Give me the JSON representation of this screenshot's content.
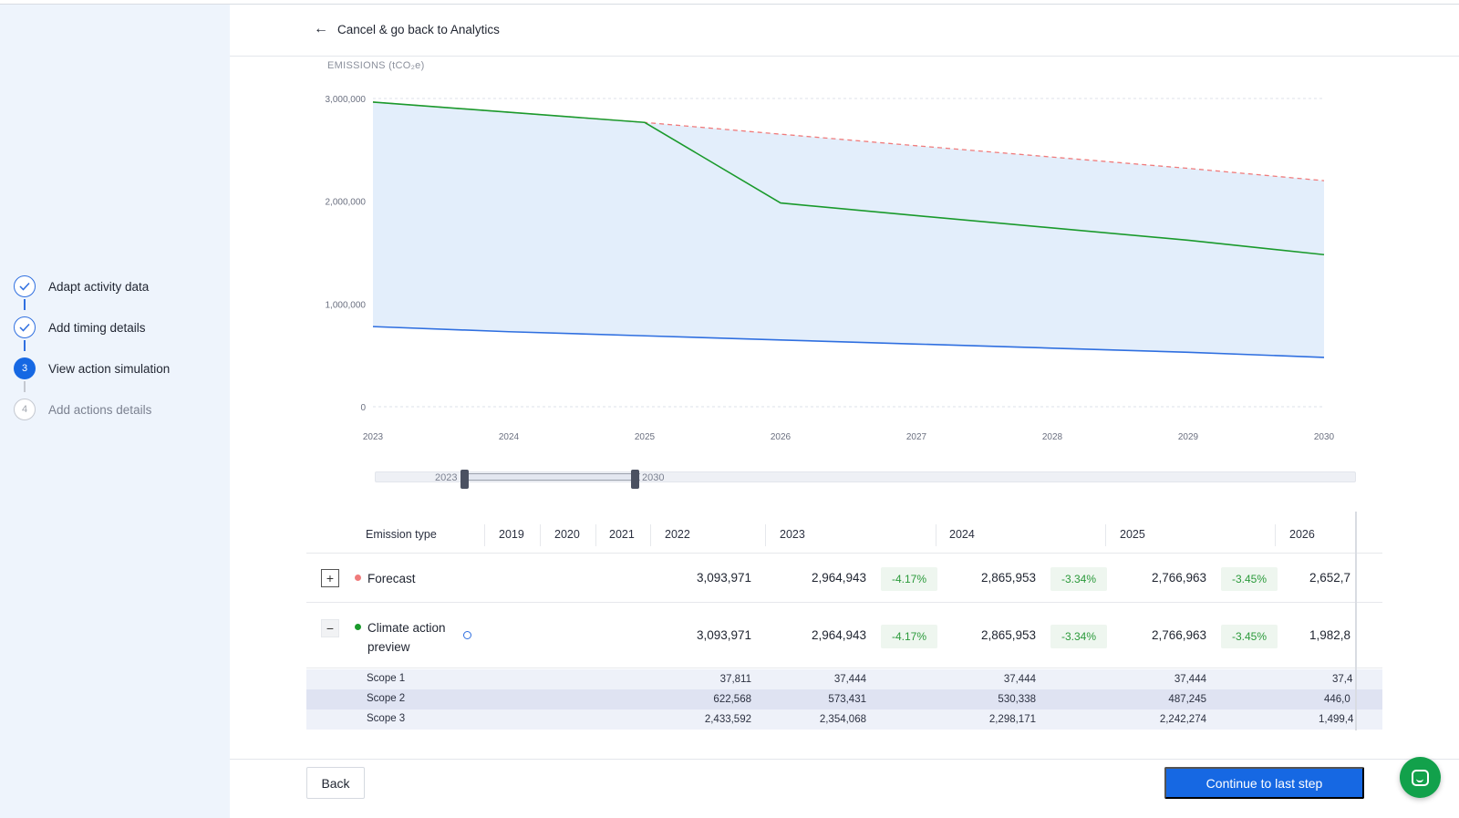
{
  "steps": [
    {
      "label": "Adapt activity data",
      "state": "done",
      "marker": ""
    },
    {
      "label": "Add timing details",
      "state": "done",
      "marker": ""
    },
    {
      "label": "View action simulation",
      "state": "active",
      "marker": "3"
    },
    {
      "label": "Add actions details",
      "state": "todo",
      "marker": "4"
    }
  ],
  "header": {
    "back_label": "Cancel & go back to Analytics"
  },
  "chart_data": {
    "type": "line",
    "ylabel": "EMISSIONS (tCO₂e)",
    "x": [
      2023,
      2024,
      2025,
      2026,
      2027,
      2028,
      2029,
      2030
    ],
    "ylim": [
      0,
      3000000
    ],
    "yticks": [
      "3,000,000",
      "2,000,000",
      "1,000,000",
      "0"
    ],
    "ytick_values": [
      3000000,
      2000000,
      1000000,
      0
    ],
    "grid": true,
    "series": [
      {
        "key": "forecast",
        "color": "#f07b7b",
        "style": "dashed",
        "values": [
          2964943,
          2865953,
          2766963,
          2652700,
          2540000,
          2430000,
          2320000,
          2200000
        ]
      },
      {
        "key": "climate_action",
        "color": "#1a9a2c",
        "style": "solid",
        "values": [
          2964943,
          2865953,
          2766963,
          1982800,
          1860000,
          1740000,
          1620000,
          1480000
        ]
      },
      {
        "key": "baseline",
        "color": "#2f6fe0",
        "style": "solid",
        "values": [
          780000,
          730000,
          690000,
          650000,
          610000,
          570000,
          530000,
          480000
        ]
      }
    ],
    "fill_color": "#e3eefb"
  },
  "range_slider": {
    "start": "2023",
    "end": "2030"
  },
  "table": {
    "headers": [
      "Emission type",
      "2019",
      "2020",
      "2021",
      "2022",
      "2023",
      "2024",
      "2025",
      "2026"
    ],
    "rows": [
      {
        "name": "Forecast",
        "toggle": "+",
        "dot_color": "#f07b7b",
        "v2022": "3,093,971",
        "v2023": "2,964,943",
        "p2023": "-4.17%",
        "v2024": "2,865,953",
        "p2024": "-3.34%",
        "v2025": "2,766,963",
        "p2025": "-3.45%",
        "v2026": "2,652,7"
      },
      {
        "name": "Climate action",
        "name2": "preview",
        "toggle": "−",
        "dot_color": "#1a9a2c",
        "v2022": "3,093,971",
        "v2023": "2,964,943",
        "p2023": "-4.17%",
        "v2024": "2,865,953",
        "p2024": "-3.34%",
        "v2025": "2,766,963",
        "p2025": "-3.45%",
        "v2026": "1,982,8"
      }
    ],
    "scopes": [
      {
        "name": "Scope 1",
        "v2022": "37,811",
        "v2023": "37,444",
        "v2024": "37,444",
        "v2025": "37,444",
        "v2026": "37,4"
      },
      {
        "name": "Scope 2",
        "v2022": "622,568",
        "v2023": "573,431",
        "v2024": "530,338",
        "v2025": "487,245",
        "v2026": "446,0"
      },
      {
        "name": "Scope 3",
        "v2022": "2,433,592",
        "v2023": "2,354,068",
        "v2024": "2,298,171",
        "v2025": "2,242,274",
        "v2026": "1,499,4"
      }
    ]
  },
  "footer": {
    "back_label": "Back",
    "continue_label": "Continue to last step"
  }
}
